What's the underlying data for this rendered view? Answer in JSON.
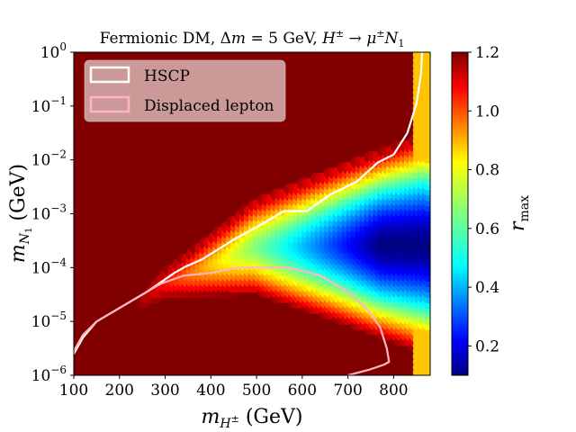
{
  "chart_data": {
    "type": "heatmap",
    "title": "Fermionic DM, Δm = 5 GeV, H± → μ±N₁",
    "xlabel": "m_{H±} (GeV)",
    "ylabel": "m_{N₁} (GeV)",
    "xlim": [
      100,
      880
    ],
    "ylim_log10": [
      -6,
      0
    ],
    "x_scale": "linear",
    "y_scale": "log",
    "x_ticks": [
      "100",
      "200",
      "300",
      "400",
      "500",
      "600",
      "700",
      "800"
    ],
    "y_ticks": [
      "10^-6",
      "10^-5",
      "10^-4",
      "10^-3",
      "10^-2",
      "10^-1",
      "10^0"
    ],
    "colorbar": {
      "label": "r_max",
      "range": [
        0.1,
        1.2
      ],
      "ticks": [
        "0.2",
        "0.4",
        "0.6",
        "0.8",
        "1.0",
        "1.2"
      ],
      "colormap": "jet"
    },
    "legend": {
      "placement": "top-left",
      "entries": [
        {
          "name": "HSCP",
          "color": "#ffffff"
        },
        {
          "name": "Displaced lepton",
          "color": "#ffb6c1"
        }
      ]
    },
    "contours": [
      {
        "name": "HSCP",
        "color": "#ffffff",
        "points": [
          [
            100,
            -5.6
          ],
          [
            120,
            -5.3
          ],
          [
            150,
            -5.0
          ],
          [
            200,
            -4.75
          ],
          [
            260,
            -4.45
          ],
          [
            320,
            -4.1
          ],
          [
            345,
            -3.98
          ],
          [
            380,
            -3.85
          ],
          [
            450,
            -3.48
          ],
          [
            510,
            -3.2
          ],
          [
            560,
            -2.95
          ],
          [
            610,
            -2.95
          ],
          [
            660,
            -2.65
          ],
          [
            720,
            -2.4
          ],
          [
            765,
            -2.05
          ],
          [
            800,
            -1.9
          ],
          [
            830,
            -1.5
          ],
          [
            850,
            -0.95
          ],
          [
            860,
            -0.4
          ],
          [
            862,
            0
          ]
        ]
      },
      {
        "name": "Displaced lepton",
        "color": "#ffb6c1",
        "points": [
          [
            100,
            -5.55
          ],
          [
            120,
            -5.25
          ],
          [
            150,
            -5.0
          ],
          [
            190,
            -4.8
          ],
          [
            240,
            -4.55
          ],
          [
            290,
            -4.3
          ],
          [
            340,
            -4.15
          ],
          [
            400,
            -4.1
          ],
          [
            460,
            -4.0
          ],
          [
            570,
            -4.0
          ],
          [
            640,
            -4.15
          ],
          [
            700,
            -4.45
          ],
          [
            745,
            -4.8
          ],
          [
            770,
            -5.1
          ],
          [
            785,
            -5.5
          ],
          [
            790,
            -5.75
          ],
          [
            780,
            -5.8
          ],
          [
            745,
            -5.9
          ],
          [
            700,
            -6.0
          ]
        ]
      }
    ],
    "surface": {
      "saturated_value": 1.2,
      "band_center_log10": [
        [
          100,
          -5.6
        ],
        [
          300,
          -4.3
        ],
        [
          500,
          -3.6
        ],
        [
          700,
          -3.55
        ],
        [
          800,
          -3.55
        ],
        [
          880,
          -3.55
        ]
      ],
      "threshold_near_800_GeV": 0.4
    }
  },
  "colors": {
    "saturated": "#800000",
    "hscp": "#ffffff",
    "displaced": "#ffb6c1"
  }
}
